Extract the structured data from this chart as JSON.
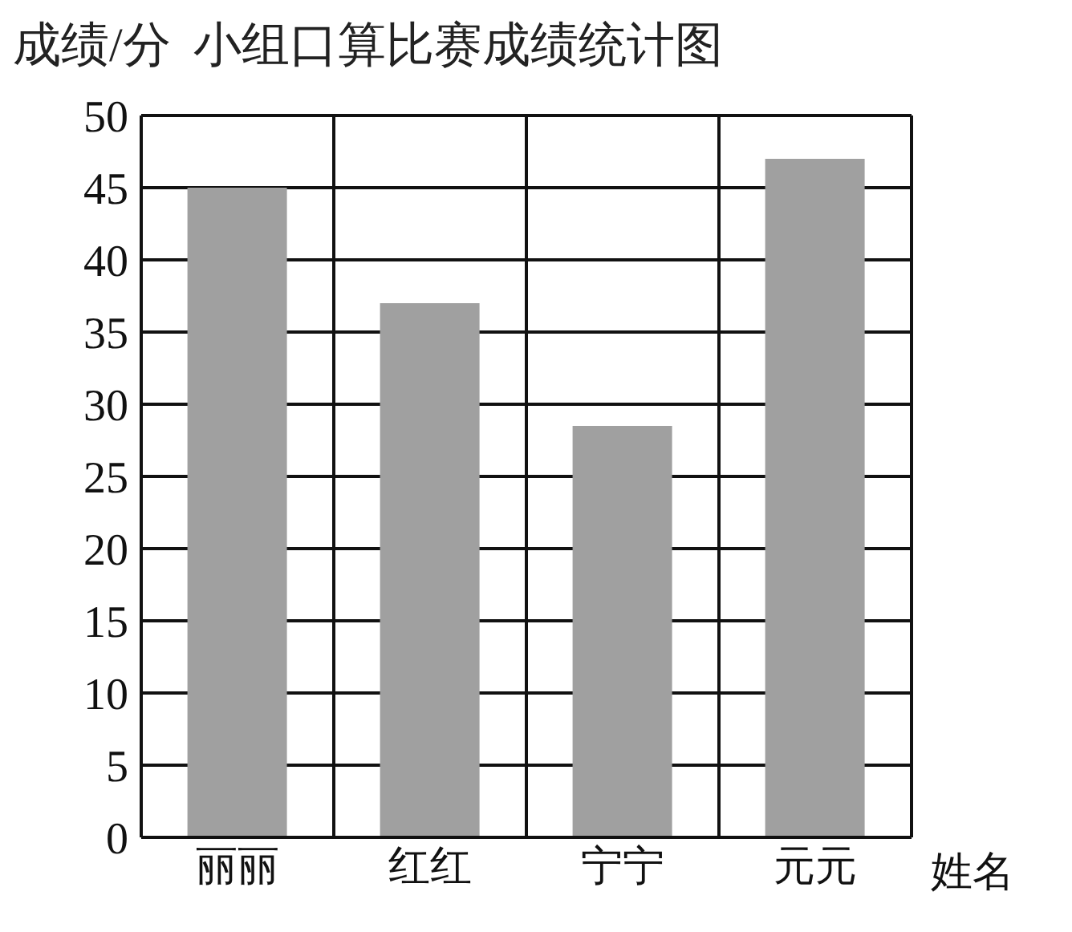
{
  "chart_data": {
    "type": "bar",
    "title": "小组口算比赛成绩统计图",
    "ylabel": "成绩/分",
    "xlabel": "姓名",
    "categories": [
      "丽丽",
      "红红",
      "宁宁",
      "元元"
    ],
    "values": [
      45,
      37,
      28.5,
      47
    ],
    "color": "#a0a0a0",
    "ylim": [
      0,
      50
    ],
    "yticks": [
      0,
      5,
      10,
      15,
      20,
      25,
      30,
      35,
      40,
      45,
      50
    ],
    "grid": true
  }
}
